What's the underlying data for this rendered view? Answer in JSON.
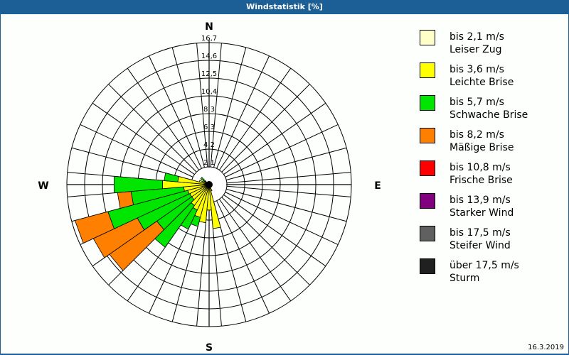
{
  "window": {
    "title": "Windstatistik [%]"
  },
  "footer": {
    "date": "16.3.2019"
  },
  "compass": {
    "n": "N",
    "e": "E",
    "s": "S",
    "w": "W"
  },
  "legend": [
    {
      "range": "bis 2,1 m/s",
      "label": "Leiser Zug",
      "color": "#ffffc8"
    },
    {
      "range": "bis 3,6 m/s",
      "label": "Leichte Brise",
      "color": "#ffff00"
    },
    {
      "range": "bis 5,7 m/s",
      "label": "Schwache Brise",
      "color": "#00e600"
    },
    {
      "range": "bis 8,2 m/s",
      "label": "Mäßige Brise",
      "color": "#ff8000"
    },
    {
      "range": "bis 10,8 m/s",
      "label": "Frische Brise",
      "color": "#ff0000"
    },
    {
      "range": "bis 13,9 m/s",
      "label": "Starker Wind",
      "color": "#800080"
    },
    {
      "range": "bis 17,5 m/s",
      "label": "Steifer Wind",
      "color": "#606060"
    },
    {
      "range": "über 17,5 m/s",
      "label": "Sturm",
      "color": "#202020"
    }
  ],
  "chart_data": {
    "type": "wind-rose",
    "title": "Windstatistik [%]",
    "unit": "%",
    "radial_ticks": [
      "2,1",
      "4,2",
      "6,3",
      "8,3",
      "10,4",
      "12,5",
      "14,6",
      "16,7"
    ],
    "radial_max": 16.7,
    "sector_width_deg": 10,
    "series_names": [
      "bis 2,1 m/s",
      "bis 3,6 m/s",
      "bis 5,7 m/s",
      "bis 8,2 m/s",
      "bis 10,8 m/s",
      "bis 13,9 m/s",
      "bis 17,5 m/s",
      "über 17,5 m/s"
    ],
    "sectors": [
      {
        "dir": 160,
        "cumulative": [
          0.3,
          0.8,
          0.8,
          0.8
        ]
      },
      {
        "dir": 170,
        "cumulative": [
          0.3,
          5.2,
          5.2,
          5.2
        ]
      },
      {
        "dir": 180,
        "cumulative": [
          0.3,
          3.0,
          3.0,
          3.0
        ]
      },
      {
        "dir": 190,
        "cumulative": [
          0.3,
          4.5,
          4.5,
          4.5
        ]
      },
      {
        "dir": 200,
        "cumulative": [
          0.3,
          4.0,
          5.1,
          5.1
        ]
      },
      {
        "dir": 210,
        "cumulative": [
          0.3,
          3.3,
          5.8,
          5.8
        ]
      },
      {
        "dir": 220,
        "cumulative": [
          0.3,
          3.0,
          9.0,
          9.0
        ]
      },
      {
        "dir": 230,
        "cumulative": [
          0.3,
          2.5,
          7.5,
          14.3
        ]
      },
      {
        "dir": 240,
        "cumulative": [
          0.3,
          2.5,
          9.3,
          15.0
        ]
      },
      {
        "dir": 250,
        "cumulative": [
          0.3,
          2.6,
          12.3,
          16.3
        ]
      },
      {
        "dir": 260,
        "cumulative": [
          0.3,
          3.0,
          9.2,
          10.8
        ]
      },
      {
        "dir": 270,
        "cumulative": [
          0.3,
          5.5,
          11.2,
          11.2
        ]
      },
      {
        "dir": 280,
        "cumulative": [
          0.3,
          3.7,
          5.3,
          5.3
        ]
      },
      {
        "dir": 290,
        "cumulative": [
          0.3,
          1.2,
          1.2,
          1.2
        ]
      },
      {
        "dir": 300,
        "cumulative": [
          0.3,
          0.8,
          0.8,
          0.8
        ]
      },
      {
        "dir": 310,
        "cumulative": [
          0.3,
          0.6,
          1.2,
          1.2
        ]
      }
    ]
  }
}
